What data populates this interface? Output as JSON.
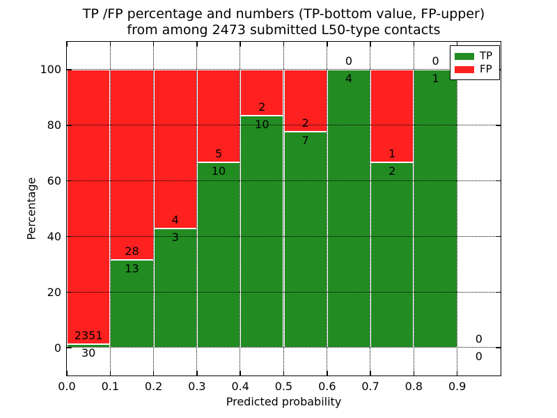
{
  "title_line1": "TP /FP percentage and numbers (TP-bottom value, FP-upper)",
  "title_line2": "from among 2473 submitted L50-type contacts",
  "chart_data": {
    "type": "bar",
    "stacked": true,
    "title": "TP /FP percentage and numbers (TP-bottom value, FP-upper) from among 2473 submitted L50-type contacts",
    "total_submitted_contacts": 2473,
    "xlabel": "Predicted probability",
    "ylabel": "Percentage",
    "xlim": [
      0,
      1.0
    ],
    "ylim": [
      -10,
      110
    ],
    "xtick_labels": [
      "0.0",
      "0.1",
      "0.2",
      "0.3",
      "0.4",
      "0.5",
      "0.6",
      "0.7",
      "0.8",
      "0.9"
    ],
    "xtick_values": [
      0,
      0.1,
      0.2,
      0.3,
      0.4,
      0.5,
      0.6,
      0.7,
      0.8,
      0.9
    ],
    "ytick_values": [
      0,
      20,
      40,
      60,
      80,
      100
    ],
    "grid": "dotted",
    "legend_position": "upper-right",
    "legend": {
      "items": [
        {
          "label": "TP",
          "color": "#228b22"
        },
        {
          "label": "FP",
          "color": "#ff2020"
        }
      ]
    },
    "colors": {
      "tp": "#228b22",
      "fp": "#ff2020",
      "bar_edge": "#ffffff"
    },
    "bins": [
      {
        "x0": 0.0,
        "x1": 0.1,
        "tp_count": 30,
        "fp_count": 2351
      },
      {
        "x0": 0.1,
        "x1": 0.2,
        "tp_count": 13,
        "fp_count": 28
      },
      {
        "x0": 0.2,
        "x1": 0.3,
        "tp_count": 3,
        "fp_count": 4
      },
      {
        "x0": 0.3,
        "x1": 0.4,
        "tp_count": 10,
        "fp_count": 5
      },
      {
        "x0": 0.4,
        "x1": 0.5,
        "tp_count": 10,
        "fp_count": 2
      },
      {
        "x0": 0.5,
        "x1": 0.6,
        "tp_count": 7,
        "fp_count": 2
      },
      {
        "x0": 0.6,
        "x1": 0.7,
        "tp_count": 4,
        "fp_count": 0
      },
      {
        "x0": 0.7,
        "x1": 0.8,
        "tp_count": 2,
        "fp_count": 1
      },
      {
        "x0": 0.8,
        "x1": 0.9,
        "tp_count": 1,
        "fp_count": 0
      },
      {
        "x0": 0.9,
        "x1": 1.0,
        "tp_count": 0,
        "fp_count": 0
      }
    ]
  }
}
